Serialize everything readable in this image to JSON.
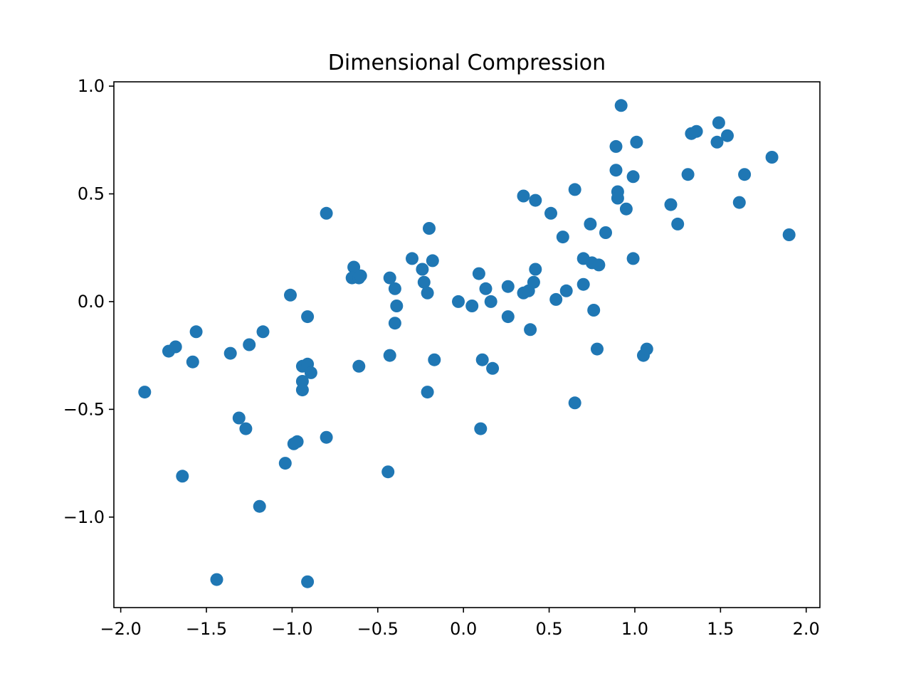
{
  "chart_data": {
    "type": "scatter",
    "title": "Dimensional Compression",
    "xlabel": "",
    "ylabel": "",
    "xlim": [
      -2.04,
      2.08
    ],
    "ylim": [
      -1.42,
      1.02
    ],
    "xticks": [
      -2.0,
      -1.5,
      -1.0,
      -0.5,
      0.0,
      0.5,
      1.0,
      1.5,
      2.0
    ],
    "xtick_labels": [
      "−2.0",
      "−1.5",
      "−1.0",
      "−0.5",
      "0.0",
      "0.5",
      "1.0",
      "1.5",
      "2.0"
    ],
    "yticks": [
      -1.0,
      -0.5,
      0.0,
      0.5,
      1.0
    ],
    "ytick_labels": [
      "−1.0",
      "−0.5",
      "0.0",
      "0.5",
      "1.0"
    ],
    "grid": false,
    "marker_color": "#1f77b4",
    "points": [
      [
        -1.86,
        -0.42
      ],
      [
        -1.72,
        -0.23
      ],
      [
        -1.68,
        -0.21
      ],
      [
        -1.58,
        -0.28
      ],
      [
        -1.56,
        -0.14
      ],
      [
        -1.64,
        -0.81
      ],
      [
        -1.44,
        -1.29
      ],
      [
        -1.36,
        -0.24
      ],
      [
        -1.31,
        -0.54
      ],
      [
        -1.27,
        -0.59
      ],
      [
        -1.25,
        -0.2
      ],
      [
        -1.19,
        -0.95
      ],
      [
        -1.17,
        -0.14
      ],
      [
        -1.04,
        -0.75
      ],
      [
        -1.01,
        0.03
      ],
      [
        -0.99,
        -0.66
      ],
      [
        -0.97,
        -0.65
      ],
      [
        -0.94,
        -0.3
      ],
      [
        -0.94,
        -0.37
      ],
      [
        -0.94,
        -0.41
      ],
      [
        -0.91,
        -0.29
      ],
      [
        -0.91,
        -0.07
      ],
      [
        -0.89,
        -0.33
      ],
      [
        -0.91,
        -1.3
      ],
      [
        -0.8,
        0.41
      ],
      [
        -0.8,
        -0.63
      ],
      [
        -0.64,
        0.16
      ],
      [
        -0.65,
        0.11
      ],
      [
        -0.61,
        0.11
      ],
      [
        -0.6,
        0.12
      ],
      [
        -0.61,
        -0.3
      ],
      [
        -0.43,
        0.11
      ],
      [
        -0.4,
        0.06
      ],
      [
        -0.39,
        -0.02
      ],
      [
        -0.4,
        -0.1
      ],
      [
        -0.43,
        -0.25
      ],
      [
        -0.44,
        -0.79
      ],
      [
        -0.3,
        0.2
      ],
      [
        -0.24,
        0.15
      ],
      [
        -0.23,
        0.09
      ],
      [
        -0.2,
        0.34
      ],
      [
        -0.18,
        0.19
      ],
      [
        -0.21,
        0.04
      ],
      [
        -0.17,
        -0.27
      ],
      [
        -0.21,
        -0.42
      ],
      [
        -0.03,
        0.0
      ],
      [
        0.05,
        -0.02
      ],
      [
        0.09,
        0.13
      ],
      [
        0.13,
        0.06
      ],
      [
        0.16,
        0.0
      ],
      [
        0.11,
        -0.27
      ],
      [
        0.17,
        -0.31
      ],
      [
        0.1,
        -0.59
      ],
      [
        0.26,
        0.07
      ],
      [
        0.26,
        -0.07
      ],
      [
        0.35,
        0.49
      ],
      [
        0.42,
        0.47
      ],
      [
        0.35,
        0.04
      ],
      [
        0.38,
        0.05
      ],
      [
        0.41,
        0.09
      ],
      [
        0.42,
        0.15
      ],
      [
        0.39,
        -0.13
      ],
      [
        0.51,
        0.41
      ],
      [
        0.58,
        0.3
      ],
      [
        0.54,
        0.01
      ],
      [
        0.6,
        0.05
      ],
      [
        0.65,
        0.52
      ],
      [
        0.7,
        0.2
      ],
      [
        0.74,
        0.36
      ],
      [
        0.75,
        0.18
      ],
      [
        0.79,
        0.17
      ],
      [
        0.7,
        0.08
      ],
      [
        0.76,
        -0.04
      ],
      [
        0.78,
        -0.22
      ],
      [
        0.65,
        -0.47
      ],
      [
        0.83,
        0.32
      ],
      [
        0.92,
        0.91
      ],
      [
        0.89,
        0.72
      ],
      [
        0.89,
        0.61
      ],
      [
        0.9,
        0.51
      ],
      [
        0.9,
        0.48
      ],
      [
        0.95,
        0.43
      ],
      [
        0.99,
        0.58
      ],
      [
        1.01,
        0.74
      ],
      [
        0.99,
        0.2
      ],
      [
        1.05,
        -0.25
      ],
      [
        1.07,
        -0.22
      ],
      [
        1.21,
        0.45
      ],
      [
        1.25,
        0.36
      ],
      [
        1.31,
        0.59
      ],
      [
        1.33,
        0.78
      ],
      [
        1.36,
        0.79
      ],
      [
        1.48,
        0.74
      ],
      [
        1.49,
        0.83
      ],
      [
        1.54,
        0.77
      ],
      [
        1.61,
        0.46
      ],
      [
        1.64,
        0.59
      ],
      [
        1.8,
        0.67
      ],
      [
        1.9,
        0.31
      ]
    ]
  }
}
